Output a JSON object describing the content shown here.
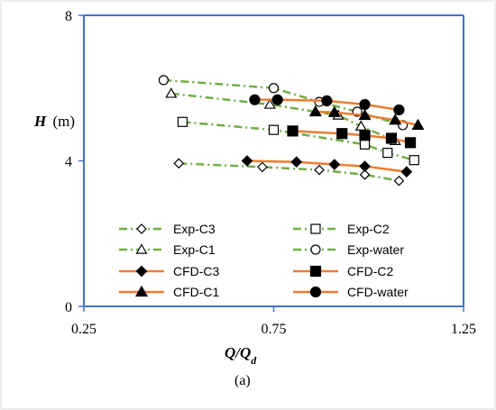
{
  "chart_data": {
    "type": "line",
    "xlabel": "Q/Q",
    "xlabel_sub": "d",
    "ylabel": "H",
    "ylabel_unit": "(m)",
    "xlim": [
      0.25,
      1.25
    ],
    "ylim": [
      0,
      8
    ],
    "xticks": [
      "0.25",
      "0.75",
      "1.25"
    ],
    "xtick_values": [
      0.25,
      0.75,
      1.25
    ],
    "yticks": [
      "0",
      "4",
      "8"
    ],
    "ytick_values": [
      0,
      4,
      8
    ],
    "grid": false,
    "legend_position": "lower-inside",
    "caption": "(a)",
    "colors": {
      "exp": "#70ad47",
      "cfd": "#ed7d31",
      "frame": "#4472c4"
    },
    "series": [
      {
        "name": "Exp-C3",
        "kind": "exp",
        "marker": "diamond-open",
        "x": [
          0.5,
          0.72,
          0.87,
          0.99,
          1.08
        ],
        "y": [
          3.93,
          3.83,
          3.75,
          3.62,
          3.45
        ]
      },
      {
        "name": "Exp-C2",
        "kind": "exp",
        "marker": "square-open",
        "x": [
          0.51,
          0.75,
          0.99,
          1.05,
          1.12
        ],
        "y": [
          5.07,
          4.85,
          4.45,
          4.22,
          4.02
        ]
      },
      {
        "name": "Exp-C1",
        "kind": "exp",
        "marker": "triangle-open",
        "x": [
          0.48,
          0.74,
          0.92,
          0.98,
          1.07
        ],
        "y": [
          5.85,
          5.55,
          5.25,
          4.95,
          4.55
        ]
      },
      {
        "name": "Exp-water",
        "kind": "exp",
        "marker": "circle-open",
        "x": [
          0.46,
          0.75,
          0.87,
          0.97,
          1.09
        ],
        "y": [
          6.22,
          6.0,
          5.62,
          5.35,
          4.98
        ]
      },
      {
        "name": "CFD-C3",
        "kind": "cfd",
        "marker": "diamond-filled",
        "x": [
          0.68,
          0.81,
          0.91,
          0.99,
          1.1
        ],
        "y": [
          4.0,
          3.97,
          3.9,
          3.85,
          3.7
        ]
      },
      {
        "name": "CFD-C2",
        "kind": "cfd",
        "marker": "square-filled",
        "x": [
          0.8,
          0.93,
          0.99,
          1.06,
          1.11
        ],
        "y": [
          4.82,
          4.75,
          4.7,
          4.62,
          4.5
        ]
      },
      {
        "name": "CFD-C1",
        "kind": "cfd",
        "marker": "triangle-filled",
        "x": [
          0.86,
          0.91,
          0.99,
          1.07,
          1.13
        ],
        "y": [
          5.35,
          5.33,
          5.25,
          5.12,
          4.98
        ]
      },
      {
        "name": "CFD-water",
        "kind": "cfd",
        "marker": "circle-filled",
        "x": [
          0.7,
          0.76,
          0.89,
          0.99,
          1.08
        ],
        "y": [
          5.68,
          5.68,
          5.65,
          5.55,
          5.4
        ]
      }
    ]
  }
}
